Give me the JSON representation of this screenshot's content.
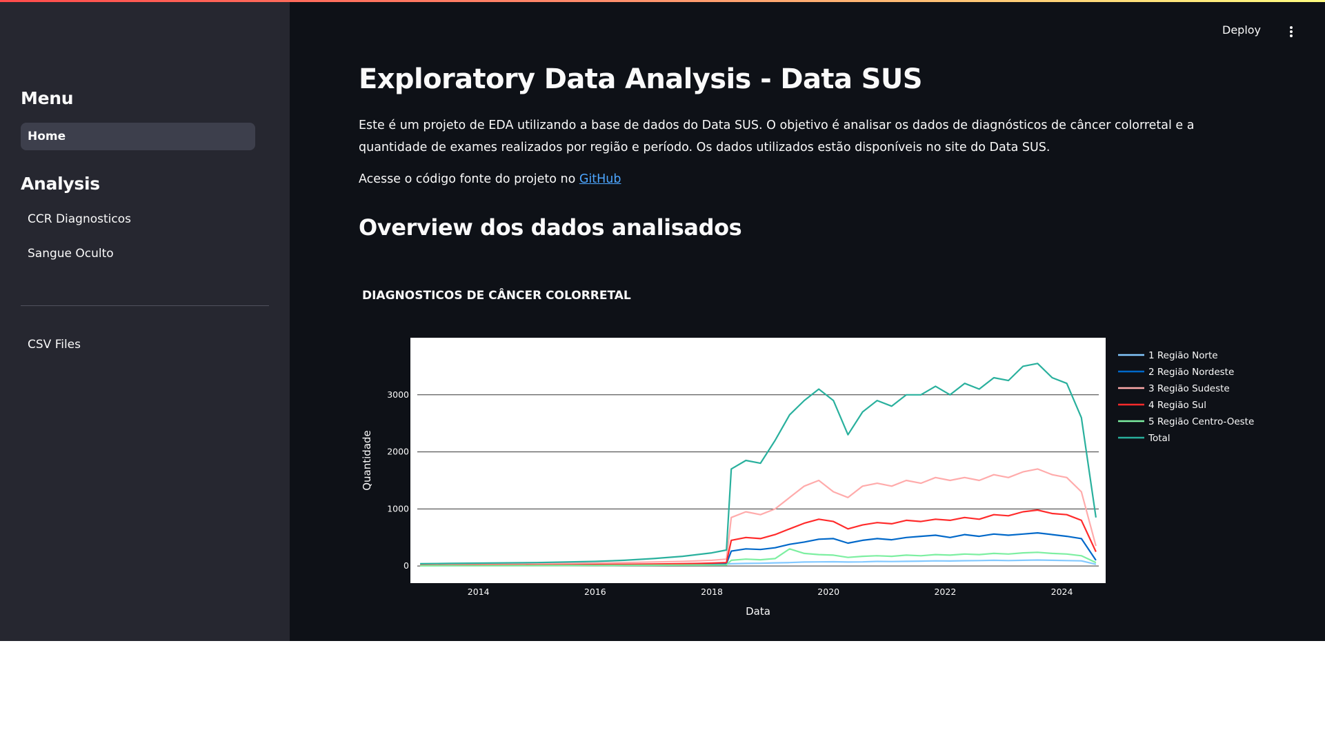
{
  "toolbar": {
    "deploy_label": "Deploy"
  },
  "sidebar": {
    "menu_heading": "Menu",
    "menu_items": [
      {
        "label": "Home",
        "active": true
      }
    ],
    "analysis_heading": "Analysis",
    "analysis_items": [
      {
        "label": "CCR Diagnosticos"
      },
      {
        "label": "Sangue Oculto"
      }
    ],
    "files_items": [
      {
        "label": "CSV Files"
      }
    ]
  },
  "main": {
    "title": "Exploratory Data Analysis - Data SUS",
    "intro": "Este é um projeto de EDA utilizando a base de dados do Data SUS. O objetivo é analisar os dados de diagnósticos de câncer colorretal e a quantidade de exames realizados por região e período. Os dados utilizados estão disponíveis no site do Data SUS.",
    "source_prefix": "Acesse o código fonte do projeto no ",
    "source_link": "GitHub",
    "section_title": "Overview dos dados analisados"
  },
  "colors": {
    "background": "#0e1117",
    "sidebar": "#262730",
    "link": "#4da6ff"
  },
  "chart_data": {
    "type": "line",
    "title": "DIAGNOSTICOS DE CÂNCER COLORRETAL",
    "xlabel": "Data",
    "ylabel": "Quantidade",
    "x_ticks": [
      "2014",
      "2016",
      "2018",
      "2020",
      "2022",
      "2024"
    ],
    "y_ticks": [
      "0",
      "1000",
      "2000",
      "3000"
    ],
    "xlim": [
      "2012-11",
      "2024-10"
    ],
    "ylim": [
      -300,
      4000
    ],
    "grid": true,
    "legend_position": "right",
    "x": [
      "2013-01",
      "2013-07",
      "2014-01",
      "2014-07",
      "2015-01",
      "2015-07",
      "2016-01",
      "2016-07",
      "2017-01",
      "2017-07",
      "2018-01",
      "2018-04",
      "2018-05",
      "2018-08",
      "2018-11",
      "2019-02",
      "2019-05",
      "2019-08",
      "2019-11",
      "2020-02",
      "2020-05",
      "2020-08",
      "2020-11",
      "2021-02",
      "2021-05",
      "2021-08",
      "2021-11",
      "2022-02",
      "2022-05",
      "2022-08",
      "2022-11",
      "2023-02",
      "2023-05",
      "2023-08",
      "2023-11",
      "2024-02",
      "2024-05",
      "2024-08"
    ],
    "series": [
      {
        "name": "1 Região Norte",
        "color": "#83c9ff",
        "values": [
          5,
          8,
          10,
          12,
          15,
          18,
          20,
          22,
          25,
          28,
          30,
          32,
          40,
          45,
          48,
          55,
          60,
          70,
          72,
          75,
          70,
          72,
          80,
          78,
          82,
          85,
          90,
          88,
          92,
          95,
          100,
          95,
          100,
          105,
          100,
          95,
          90,
          30
        ]
      },
      {
        "name": "2 Região Nordeste",
        "color": "#0068c9",
        "values": [
          10,
          12,
          14,
          16,
          18,
          20,
          22,
          25,
          28,
          32,
          35,
          40,
          260,
          300,
          290,
          320,
          380,
          420,
          470,
          480,
          400,
          450,
          480,
          460,
          500,
          520,
          540,
          500,
          550,
          520,
          560,
          540,
          560,
          580,
          550,
          520,
          480,
          100
        ]
      },
      {
        "name": "3 Região Sudeste",
        "color": "#ffabab",
        "values": [
          20,
          25,
          30,
          35,
          40,
          45,
          50,
          60,
          70,
          80,
          100,
          120,
          850,
          950,
          900,
          1000,
          1200,
          1400,
          1500,
          1300,
          1200,
          1400,
          1450,
          1400,
          1500,
          1450,
          1550,
          1500,
          1550,
          1500,
          1600,
          1550,
          1650,
          1700,
          1600,
          1550,
          1300,
          350
        ]
      },
      {
        "name": "4 Região Sul",
        "color": "#ff2b2b",
        "values": [
          10,
          12,
          14,
          16,
          18,
          20,
          25,
          30,
          35,
          40,
          50,
          60,
          450,
          500,
          480,
          550,
          650,
          750,
          820,
          780,
          650,
          720,
          760,
          740,
          800,
          780,
          820,
          800,
          850,
          820,
          900,
          880,
          950,
          980,
          920,
          900,
          800,
          250
        ]
      },
      {
        "name": "5 Região Centro-Oeste",
        "color": "#7defa1",
        "values": [
          3,
          5,
          6,
          7,
          8,
          9,
          10,
          12,
          14,
          16,
          18,
          20,
          100,
          120,
          110,
          130,
          300,
          220,
          200,
          190,
          150,
          170,
          180,
          170,
          190,
          180,
          200,
          190,
          210,
          200,
          220,
          210,
          230,
          240,
          220,
          210,
          180,
          60
        ]
      },
      {
        "name": "Total",
        "color": "#29b09d",
        "values": [
          40,
          45,
          50,
          55,
          60,
          70,
          80,
          100,
          130,
          170,
          230,
          280,
          1700,
          1850,
          1800,
          2200,
          2650,
          2900,
          3100,
          2900,
          2300,
          2700,
          2900,
          2800,
          3000,
          3000,
          3150,
          3000,
          3200,
          3100,
          3300,
          3250,
          3500,
          3550,
          3300,
          3200,
          2600,
          850
        ]
      }
    ]
  }
}
